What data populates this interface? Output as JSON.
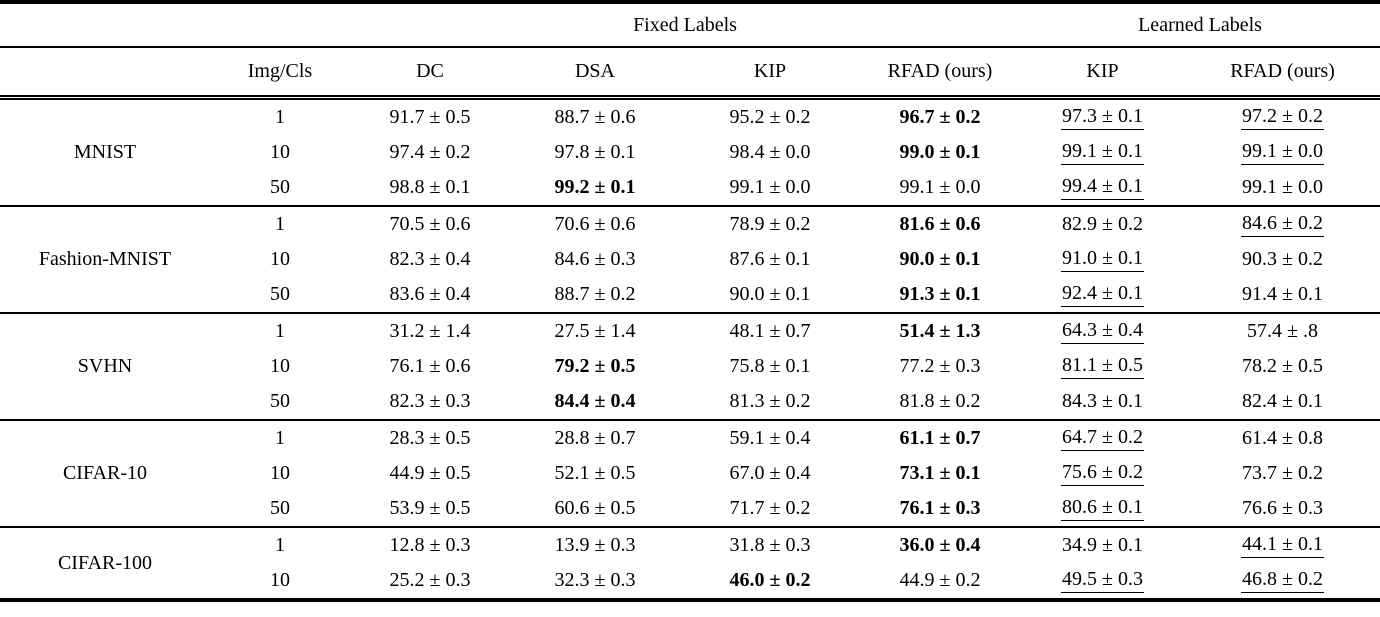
{
  "table": {
    "group_headers": [
      {
        "label": "",
        "span": 2
      },
      {
        "label": "Fixed Labels",
        "span": 4
      },
      {
        "label": "Learned Labels",
        "span": 2
      }
    ],
    "column_headers": [
      "",
      "Img/Cls",
      "DC",
      "DSA",
      "KIP",
      "RFAD (ours)",
      "KIP",
      "RFAD (ours)"
    ],
    "sections": [
      {
        "dataset": "MNIST",
        "rows": [
          {
            "img_cls": "1",
            "cells": [
              {
                "v": "91.7 ± 0.5",
                "s": ""
              },
              {
                "v": "88.7 ± 0.6",
                "s": ""
              },
              {
                "v": "95.2 ± 0.2",
                "s": ""
              },
              {
                "v": "96.7 ± 0.2",
                "s": "b"
              },
              {
                "v": "97.3 ± 0.1",
                "s": "u"
              },
              {
                "v": "97.2 ± 0.2",
                "s": "u"
              }
            ]
          },
          {
            "img_cls": "10",
            "cells": [
              {
                "v": "97.4 ± 0.2",
                "s": ""
              },
              {
                "v": "97.8 ± 0.1",
                "s": ""
              },
              {
                "v": "98.4 ± 0.0",
                "s": ""
              },
              {
                "v": "99.0 ± 0.1",
                "s": "b"
              },
              {
                "v": "99.1 ± 0.1",
                "s": "u"
              },
              {
                "v": "99.1 ± 0.0",
                "s": "u"
              }
            ]
          },
          {
            "img_cls": "50",
            "cells": [
              {
                "v": "98.8 ± 0.1",
                "s": ""
              },
              {
                "v": "99.2 ± 0.1",
                "s": "b"
              },
              {
                "v": "99.1 ± 0.0",
                "s": ""
              },
              {
                "v": "99.1 ± 0.0",
                "s": ""
              },
              {
                "v": "99.4 ± 0.1",
                "s": "u"
              },
              {
                "v": "99.1 ± 0.0",
                "s": ""
              }
            ]
          }
        ]
      },
      {
        "dataset": "Fashion-MNIST",
        "rows": [
          {
            "img_cls": "1",
            "cells": [
              {
                "v": "70.5 ± 0.6",
                "s": ""
              },
              {
                "v": "70.6 ± 0.6",
                "s": ""
              },
              {
                "v": "78.9 ± 0.2",
                "s": ""
              },
              {
                "v": "81.6 ± 0.6",
                "s": "b"
              },
              {
                "v": "82.9 ± 0.2",
                "s": ""
              },
              {
                "v": "84.6 ± 0.2",
                "s": "u"
              }
            ]
          },
          {
            "img_cls": "10",
            "cells": [
              {
                "v": "82.3 ± 0.4",
                "s": ""
              },
              {
                "v": "84.6 ± 0.3",
                "s": ""
              },
              {
                "v": "87.6 ± 0.1",
                "s": ""
              },
              {
                "v": "90.0 ± 0.1",
                "s": "b"
              },
              {
                "v": "91.0 ± 0.1",
                "s": "u"
              },
              {
                "v": "90.3 ± 0.2",
                "s": ""
              }
            ]
          },
          {
            "img_cls": "50",
            "cells": [
              {
                "v": "83.6 ± 0.4",
                "s": ""
              },
              {
                "v": "88.7 ± 0.2",
                "s": ""
              },
              {
                "v": "90.0 ± 0.1",
                "s": ""
              },
              {
                "v": "91.3 ± 0.1",
                "s": "b"
              },
              {
                "v": "92.4 ± 0.1",
                "s": "u"
              },
              {
                "v": "91.4 ± 0.1",
                "s": ""
              }
            ]
          }
        ]
      },
      {
        "dataset": "SVHN",
        "rows": [
          {
            "img_cls": "1",
            "cells": [
              {
                "v": "31.2 ± 1.4",
                "s": ""
              },
              {
                "v": "27.5 ± 1.4",
                "s": ""
              },
              {
                "v": "48.1 ± 0.7",
                "s": ""
              },
              {
                "v": "51.4 ± 1.3",
                "s": "b"
              },
              {
                "v": "64.3 ± 0.4",
                "s": "u"
              },
              {
                "v": "57.4 ± .8",
                "s": ""
              }
            ]
          },
          {
            "img_cls": "10",
            "cells": [
              {
                "v": "76.1 ± 0.6",
                "s": ""
              },
              {
                "v": "79.2 ± 0.5",
                "s": "b"
              },
              {
                "v": "75.8 ± 0.1",
                "s": ""
              },
              {
                "v": "77.2 ± 0.3",
                "s": ""
              },
              {
                "v": "81.1 ± 0.5",
                "s": "u"
              },
              {
                "v": "78.2 ± 0.5",
                "s": ""
              }
            ]
          },
          {
            "img_cls": "50",
            "cells": [
              {
                "v": "82.3 ± 0.3",
                "s": ""
              },
              {
                "v": "84.4 ± 0.4",
                "s": "b"
              },
              {
                "v": "81.3 ± 0.2",
                "s": ""
              },
              {
                "v": "81.8 ± 0.2",
                "s": ""
              },
              {
                "v": "84.3 ± 0.1",
                "s": ""
              },
              {
                "v": "82.4 ± 0.1",
                "s": ""
              }
            ]
          }
        ]
      },
      {
        "dataset": "CIFAR-10",
        "rows": [
          {
            "img_cls": "1",
            "cells": [
              {
                "v": "28.3 ± 0.5",
                "s": ""
              },
              {
                "v": "28.8 ± 0.7",
                "s": ""
              },
              {
                "v": "59.1 ± 0.4",
                "s": ""
              },
              {
                "v": "61.1 ± 0.7",
                "s": "b"
              },
              {
                "v": "64.7 ± 0.2",
                "s": "u"
              },
              {
                "v": "61.4 ± 0.8",
                "s": ""
              }
            ]
          },
          {
            "img_cls": "10",
            "cells": [
              {
                "v": "44.9 ± 0.5",
                "s": ""
              },
              {
                "v": "52.1 ± 0.5",
                "s": ""
              },
              {
                "v": "67.0 ± 0.4",
                "s": ""
              },
              {
                "v": "73.1 ± 0.1",
                "s": "b"
              },
              {
                "v": "75.6 ± 0.2",
                "s": "u"
              },
              {
                "v": "73.7 ± 0.2",
                "s": ""
              }
            ]
          },
          {
            "img_cls": "50",
            "cells": [
              {
                "v": "53.9 ± 0.5",
                "s": ""
              },
              {
                "v": "60.6 ± 0.5",
                "s": ""
              },
              {
                "v": "71.7 ± 0.2",
                "s": ""
              },
              {
                "v": "76.1 ± 0.3",
                "s": "b"
              },
              {
                "v": "80.6 ± 0.1",
                "s": "u"
              },
              {
                "v": "76.6 ± 0.3",
                "s": ""
              }
            ]
          }
        ]
      },
      {
        "dataset": "CIFAR-100",
        "rows": [
          {
            "img_cls": "1",
            "cells": [
              {
                "v": "12.8 ± 0.3",
                "s": ""
              },
              {
                "v": "13.9 ± 0.3",
                "s": ""
              },
              {
                "v": "31.8 ± 0.3",
                "s": ""
              },
              {
                "v": "36.0 ± 0.4",
                "s": "b"
              },
              {
                "v": "34.9 ± 0.1",
                "s": ""
              },
              {
                "v": "44.1 ± 0.1",
                "s": "u"
              }
            ]
          },
          {
            "img_cls": "10",
            "cells": [
              {
                "v": "25.2 ± 0.3",
                "s": ""
              },
              {
                "v": "32.3 ± 0.3",
                "s": ""
              },
              {
                "v": "46.0 ± 0.2",
                "s": "b"
              },
              {
                "v": "44.9 ± 0.2",
                "s": ""
              },
              {
                "v": "49.5 ± 0.3",
                "s": "u"
              },
              {
                "v": "46.8 ± 0.2",
                "s": "u"
              }
            ]
          }
        ]
      }
    ]
  }
}
